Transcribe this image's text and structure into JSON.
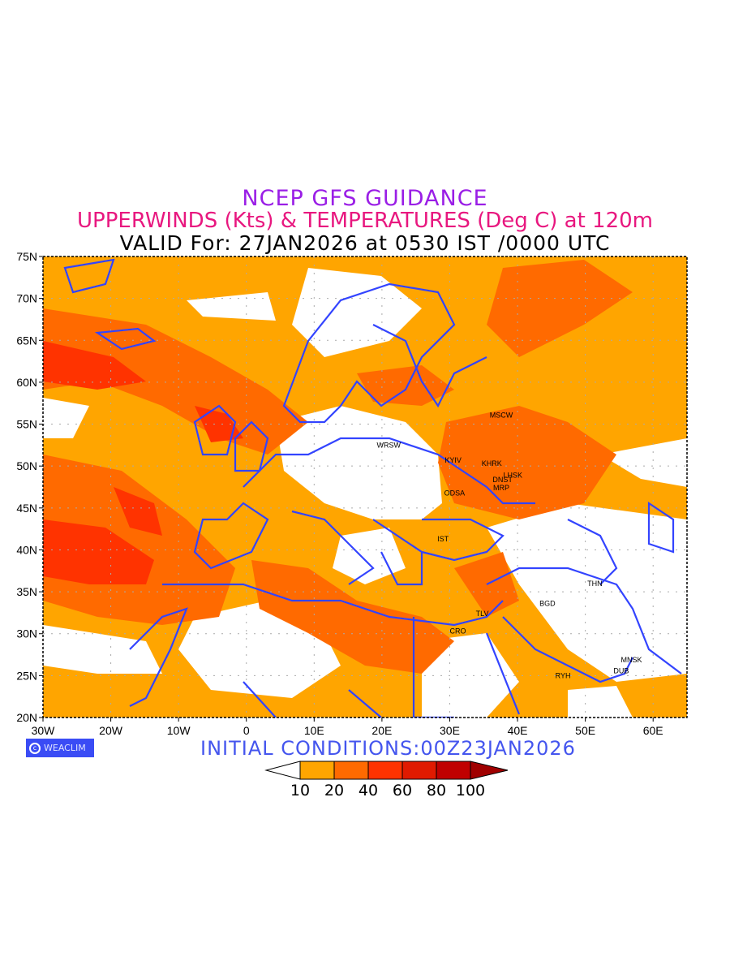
{
  "title": {
    "line1": "NCEP GFS GUIDANCE",
    "line2": "UPPERWINDS (Kts) & TEMPERATURES (Deg C) at 120m",
    "line3": "VALID For: 27JAN2026 at 0530 IST /0000 UTC"
  },
  "map": {
    "lon_range": [
      -30,
      65
    ],
    "lat_range": [
      20,
      75
    ],
    "lat_ticks": [
      {
        "v": 75,
        "label": "75N"
      },
      {
        "v": 70,
        "label": "70N"
      },
      {
        "v": 65,
        "label": "65N"
      },
      {
        "v": 60,
        "label": "60N"
      },
      {
        "v": 55,
        "label": "55N"
      },
      {
        "v": 50,
        "label": "50N"
      },
      {
        "v": 45,
        "label": "45N"
      },
      {
        "v": 40,
        "label": "40N"
      },
      {
        "v": 35,
        "label": "35N"
      },
      {
        "v": 30,
        "label": "30N"
      },
      {
        "v": 25,
        "label": "25N"
      },
      {
        "v": 20,
        "label": "20N"
      }
    ],
    "lon_ticks": [
      {
        "v": -30,
        "label": "30W"
      },
      {
        "v": -20,
        "label": "20W"
      },
      {
        "v": -10,
        "label": "10W"
      },
      {
        "v": 0,
        "label": "0"
      },
      {
        "v": 10,
        "label": "10E"
      },
      {
        "v": 20,
        "label": "20E"
      },
      {
        "v": 30,
        "label": "30E"
      },
      {
        "v": 40,
        "label": "40E"
      },
      {
        "v": 50,
        "label": "50E"
      },
      {
        "v": 60,
        "label": "60E"
      }
    ],
    "stations": [
      {
        "name": "MSCW",
        "lon": 37.6,
        "lat": 55.8
      },
      {
        "name": "WRSW",
        "lon": 21.0,
        "lat": 52.2
      },
      {
        "name": "KYIV",
        "lon": 30.5,
        "lat": 50.4
      },
      {
        "name": "KHRK",
        "lon": 36.2,
        "lat": 50.0
      },
      {
        "name": "LHSK",
        "lon": 39.3,
        "lat": 48.6
      },
      {
        "name": "DNST",
        "lon": 37.8,
        "lat": 48.1
      },
      {
        "name": "MRP",
        "lon": 37.6,
        "lat": 47.1
      },
      {
        "name": "ODSA",
        "lon": 30.7,
        "lat": 46.5
      },
      {
        "name": "IST",
        "lon": 29.0,
        "lat": 41.0
      },
      {
        "name": "THN",
        "lon": 51.4,
        "lat": 35.7
      },
      {
        "name": "BGD",
        "lon": 44.4,
        "lat": 33.3
      },
      {
        "name": "TLV",
        "lon": 34.8,
        "lat": 32.1
      },
      {
        "name": "CRO",
        "lon": 31.2,
        "lat": 30.0
      },
      {
        "name": "MNSK",
        "lon": 56.8,
        "lat": 26.6
      },
      {
        "name": "RYH",
        "lon": 46.7,
        "lat": 24.7
      },
      {
        "name": "DUB",
        "lon": 55.3,
        "lat": 25.3
      }
    ]
  },
  "logo": "WEACLIM",
  "initial_conditions": "INITIAL  CONDITIONS:00Z23JAN2026",
  "colorbar": {
    "levels": [
      "10",
      "20",
      "40",
      "60",
      "80",
      "100"
    ],
    "colors": [
      "#ffffff",
      "#ffa500",
      "#ff6a00",
      "#ff3300",
      "#e01a00",
      "#c00000",
      "#a00000"
    ]
  },
  "colors": {
    "coast": "#3344ff",
    "grid": "#aaaaaa"
  }
}
